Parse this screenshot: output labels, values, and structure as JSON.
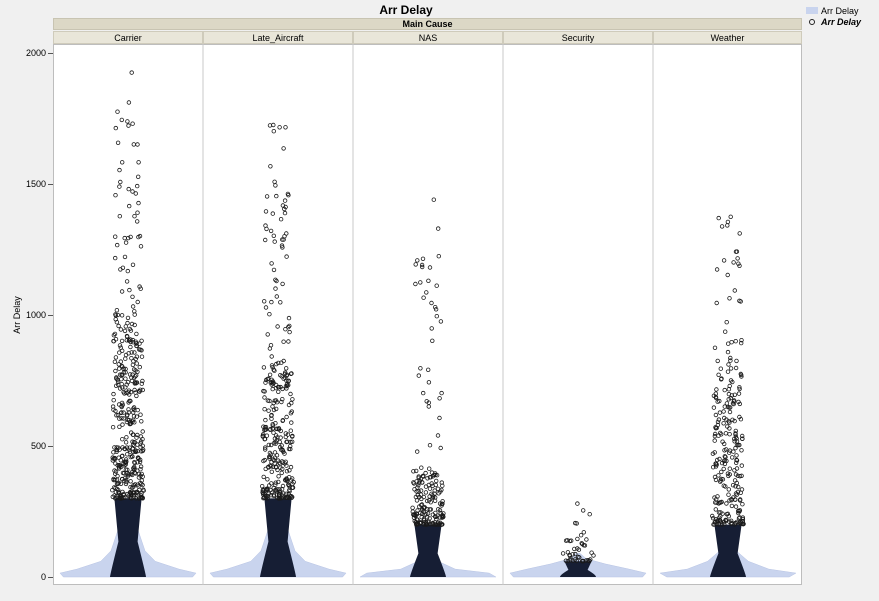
{
  "chart_data": {
    "type": "violin",
    "title": "Arr Delay",
    "group_label": "Main Cause",
    "ylabel": "Arr Delay",
    "ylim": [
      -20,
      2040
    ],
    "yticks": [
      0,
      500,
      1000,
      1500,
      2000
    ],
    "categories": [
      "Carrier",
      "Late_Aircraft",
      "NAS",
      "Security",
      "Weather"
    ],
    "series": [
      {
        "name": "Arr Delay",
        "groups": [
          {
            "category": "Carrier",
            "dense_max": 300,
            "max": 1925,
            "moderate_max": 900,
            "outlier_count": 420,
            "violin": [
              [
                0,
                0.95
              ],
              [
                15,
                1.0
              ],
              [
                30,
                0.75
              ],
              [
                60,
                0.4
              ],
              [
                100,
                0.25
              ],
              [
                200,
                0.12
              ],
              [
                300,
                0.05
              ]
            ]
          },
          {
            "category": "Late_Aircraft",
            "dense_max": 300,
            "max": 1725,
            "moderate_max": 800,
            "outlier_count": 320,
            "violin": [
              [
                0,
                0.95
              ],
              [
                15,
                1.0
              ],
              [
                30,
                0.75
              ],
              [
                60,
                0.4
              ],
              [
                100,
                0.25
              ],
              [
                200,
                0.12
              ],
              [
                300,
                0.05
              ]
            ]
          },
          {
            "category": "NAS",
            "dense_max": 200,
            "max": 1440,
            "moderate_max": 400,
            "outlier_count": 200,
            "violin": [
              [
                0,
                1.0
              ],
              [
                15,
                0.9
              ],
              [
                30,
                0.4
              ],
              [
                60,
                0.15
              ],
              [
                100,
                0.08
              ],
              [
                200,
                0.03
              ]
            ]
          },
          {
            "category": "Security",
            "dense_max": 60,
            "max": 280,
            "moderate_max": 140,
            "outlier_count": 45,
            "violin": [
              [
                0,
                0.95
              ],
              [
                15,
                1.0
              ],
              [
                30,
                0.75
              ],
              [
                50,
                0.4
              ],
              [
                70,
                0.12
              ],
              [
                90,
                0.03
              ]
            ]
          },
          {
            "category": "Weather",
            "dense_max": 200,
            "max": 1375,
            "moderate_max": 700,
            "outlier_count": 260,
            "violin": [
              [
                0,
                0.9
              ],
              [
                15,
                1.0
              ],
              [
                30,
                0.6
              ],
              [
                60,
                0.3
              ],
              [
                100,
                0.12
              ],
              [
                150,
                0.04
              ]
            ]
          }
        ]
      }
    ],
    "legend": [
      {
        "label": "Arr Delay",
        "kind": "violin",
        "color": "#c9d4ee"
      },
      {
        "label": "Arr Delay",
        "kind": "points",
        "color": "#1a1a1a"
      }
    ],
    "colors": {
      "violin_fill": "#c9d4ee",
      "dense_fill": "#161e34",
      "point_stroke": "#1a1a1a"
    }
  }
}
